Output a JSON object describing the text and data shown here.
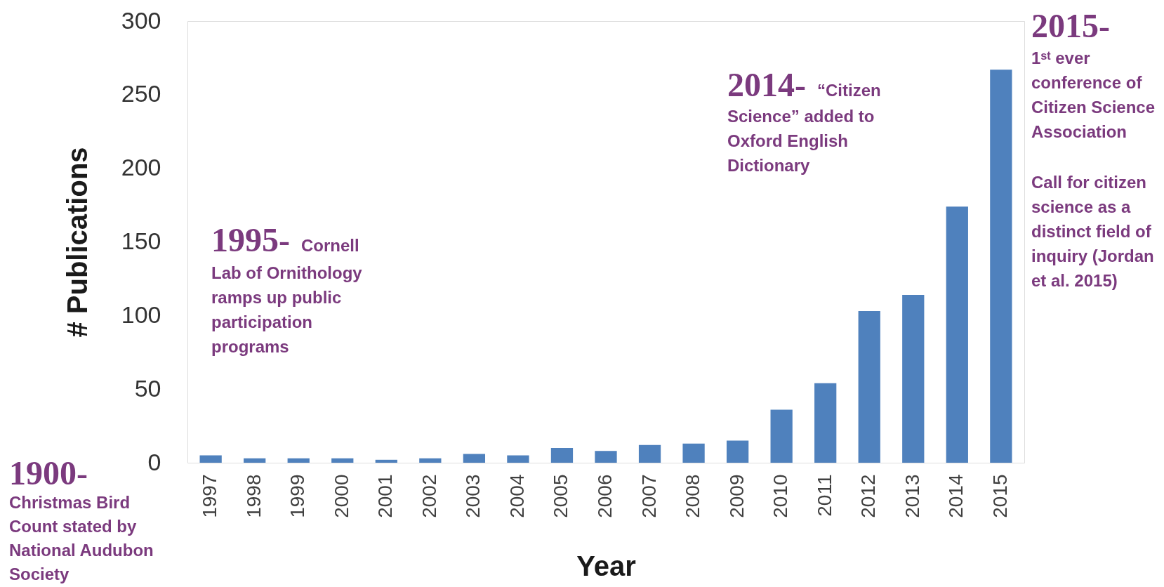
{
  "chart_data": {
    "type": "bar",
    "xlabel": "Year",
    "ylabel": "# Publications",
    "categories": [
      "1997",
      "1998",
      "1999",
      "2000",
      "2001",
      "2002",
      "2003",
      "2004",
      "2005",
      "2006",
      "2007",
      "2008",
      "2009",
      "2010",
      "2011",
      "2012",
      "2013",
      "2014",
      "2015"
    ],
    "values": [
      5,
      3,
      3,
      3,
      2,
      3,
      6,
      5,
      10,
      8,
      12,
      13,
      15,
      36,
      54,
      103,
      114,
      174,
      267
    ],
    "color": "#4f81bd",
    "ylim": [
      0,
      300
    ],
    "yticks": [
      0,
      50,
      100,
      150,
      200,
      250,
      300
    ],
    "grid": false,
    "annotations": [
      "1900- Christmas Bird Count stated by National Audubon Society",
      "1995- Cornell Lab of Ornithology ramps up public participation programs",
      "2014- “Citizen Science” added to Oxford English Dictionary",
      "2015- 1ˢᵗ ever conference of Citizen Science Association",
      "Call for citizen science as a distinct field of inquiry (Jordan et al. 2015)"
    ]
  }
}
